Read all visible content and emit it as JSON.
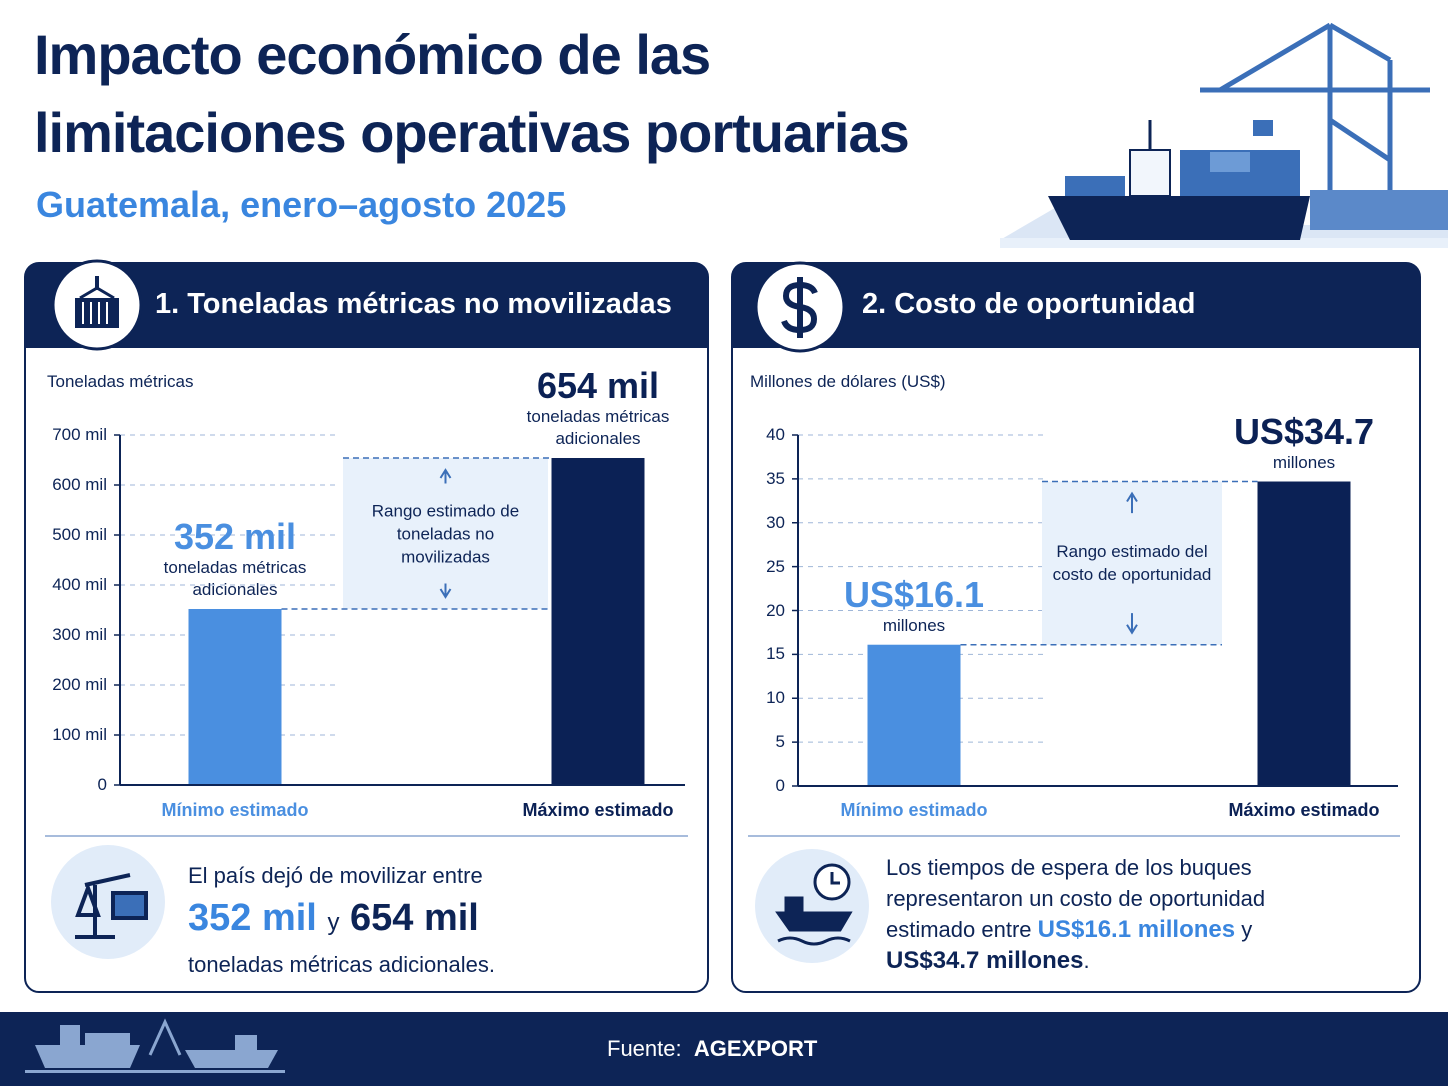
{
  "header": {
    "title_line1": "Impacto económico de las",
    "title_line2": "limitaciones operativas portuarias",
    "subtitle": "Guatemala, enero–agosto 2025"
  },
  "chart_data": [
    {
      "type": "bar",
      "title": "1. Toneladas métricas no movilizadas",
      "y_label": "Toneladas métricas",
      "categories": [
        "Mínimo estimado",
        "Máximo estimado"
      ],
      "values": [
        352000,
        654000
      ],
      "value_labels": [
        "352 mil",
        "654 mil"
      ],
      "value_sublabels": [
        "toneladas métricas adicionales",
        "toneladas métricas adicionales"
      ],
      "colors": [
        "#4a8fe0",
        "#0b2155"
      ],
      "range_label": "Rango estimado de toneladas no movilizadas",
      "ylim": [
        0,
        700000
      ],
      "yticks": [
        0,
        {
          "value": 100000,
          "label": "100 mil"
        },
        {
          "value": 200000,
          "label": "200 mil"
        },
        {
          "value": 300000,
          "label": "300 mil"
        },
        {
          "value": 400000,
          "label": "400 mil"
        },
        {
          "value": 500000,
          "label": "500 mil"
        },
        {
          "value": 600000,
          "label": "600 mil"
        },
        {
          "value": 700000,
          "label": "700 mil"
        }
      ],
      "grid": true
    },
    {
      "type": "bar",
      "title": "2. Costo de oportunidad",
      "y_label": "Millones de dólares (US$)",
      "categories": [
        "Mínimo estimado",
        "Máximo estimado"
      ],
      "values": [
        16.1,
        34.7
      ],
      "value_labels": [
        "US$16.1",
        "US$34.7"
      ],
      "value_sublabels": [
        "millones",
        "millones"
      ],
      "colors": [
        "#4a8fe0",
        "#0b2155"
      ],
      "range_label": "Rango estimado del costo de oportunidad",
      "ylim": [
        0,
        40
      ],
      "yticks": [
        0,
        5,
        10,
        15,
        20,
        25,
        30,
        35,
        40
      ],
      "grid": true
    }
  ],
  "summaries": [
    {
      "text": "El país dejó de movilizar entre",
      "min": "352 mil",
      "joiner": "y",
      "max": "654 mil",
      "end": "toneladas métricas adicionales."
    },
    {
      "text": "Los tiempos de espera de los buques representaron un costo de oportunidad estimado entre",
      "min": "US$16.1 millones",
      "joiner": "y",
      "max": "US$34.7 millones",
      "end": "."
    }
  ],
  "footer": {
    "label": "Fuente:",
    "source": "AGEXPORT"
  }
}
